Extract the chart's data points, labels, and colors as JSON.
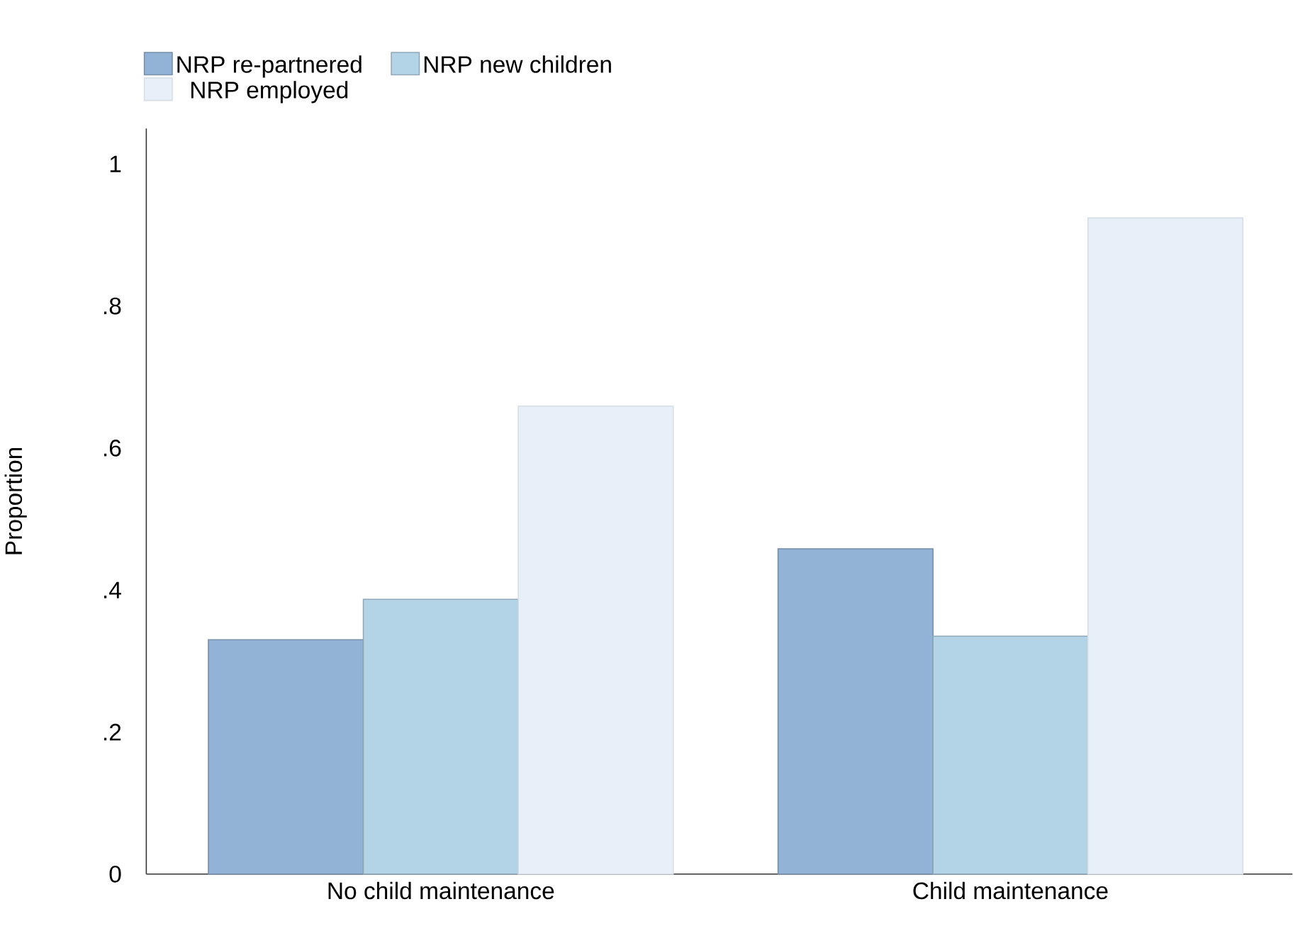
{
  "chart_data": {
    "type": "bar",
    "ylabel": "Proportion",
    "categories": [
      "No child maintenance",
      "Child maintenance"
    ],
    "series": [
      {
        "name": "NRP re-partnered",
        "color": "#92b2d6",
        "values": [
          0.33,
          0.458
        ]
      },
      {
        "name": "NRP new children",
        "color": "#b3d3e6",
        "values": [
          0.387,
          0.335
        ]
      },
      {
        "name": "NRP employed",
        "color": "#e7eff8",
        "values": [
          0.659,
          0.924
        ]
      }
    ],
    "ylim": [
      0,
      1.05
    ],
    "yticks": [
      {
        "value": 0,
        "label": "0"
      },
      {
        "value": 0.2,
        "label": ".2"
      },
      {
        "value": 0.4,
        "label": ".4"
      },
      {
        "value": 0.6,
        "label": ".6"
      },
      {
        "value": 0.8,
        "label": ".8"
      },
      {
        "value": 1,
        "label": "1"
      }
    ],
    "grid": false,
    "legend": "top left"
  }
}
